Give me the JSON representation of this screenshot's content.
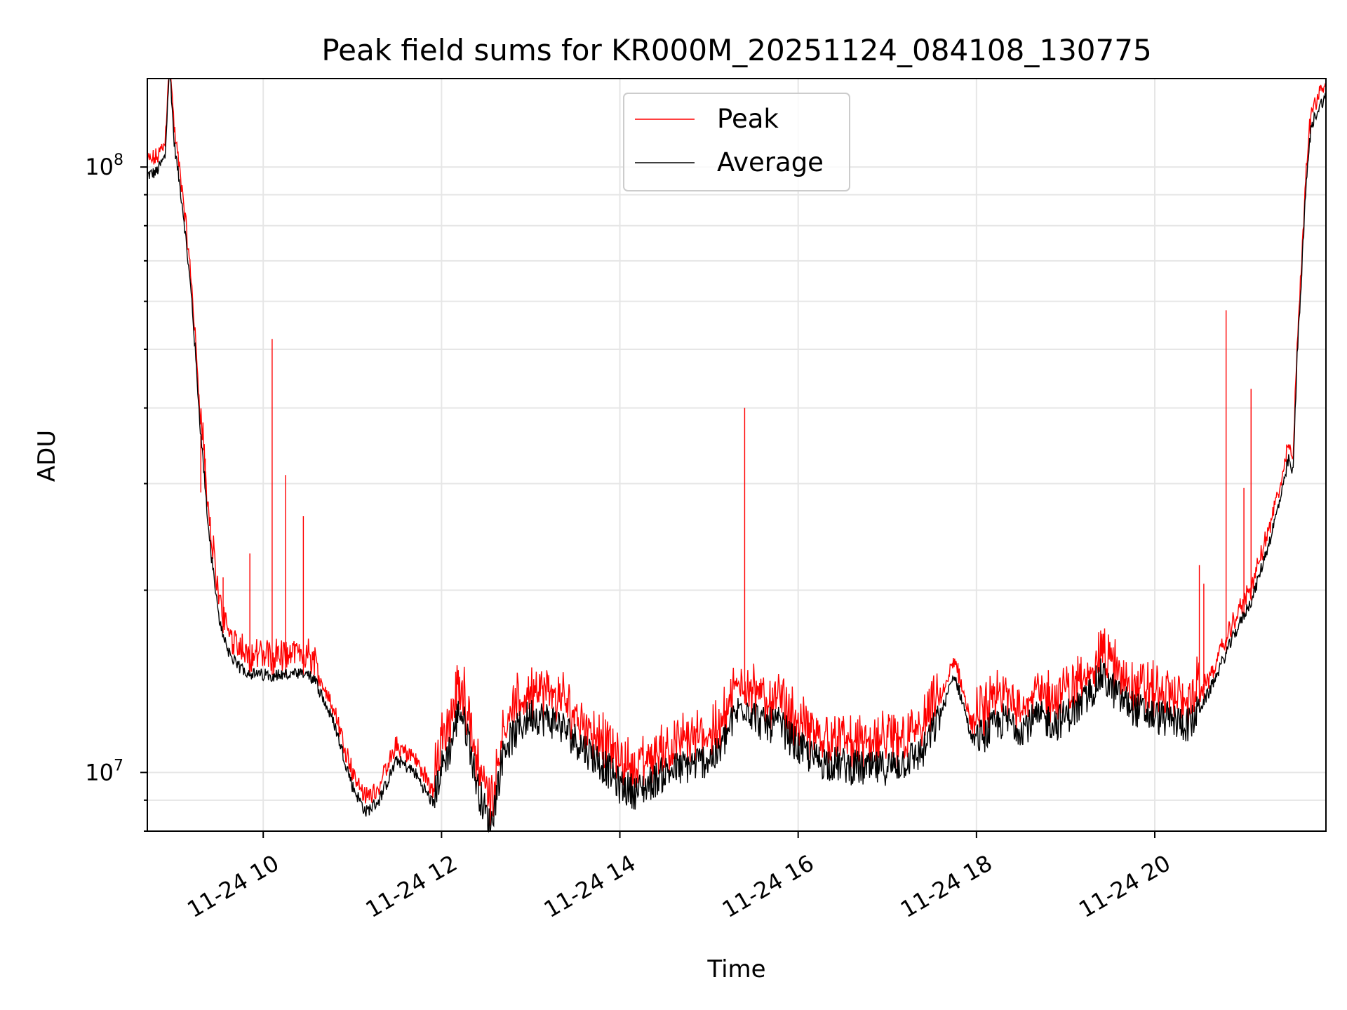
{
  "chart_data": {
    "type": "line",
    "title": "Peak field sums for KR000M_20251124_084108_130775",
    "xlabel": "Time",
    "ylabel": "ADU",
    "y_scale": "log",
    "ylim": [
      8000000,
      140000000
    ],
    "xlim_hours": [
      8.7,
      21.92
    ],
    "grid": true,
    "legend_position": "top-center",
    "x_ticks": [
      {
        "hour": 10,
        "label": "11-24 10"
      },
      {
        "hour": 12,
        "label": "11-24 12"
      },
      {
        "hour": 14,
        "label": "11-24 14"
      },
      {
        "hour": 16,
        "label": "11-24 16"
      },
      {
        "hour": 18,
        "label": "11-24 18"
      },
      {
        "hour": 20,
        "label": "11-24 20"
      }
    ],
    "y_ticks": [
      {
        "value": 10000000,
        "base": "10",
        "exp": "7"
      },
      {
        "value": 100000000,
        "base": "10",
        "exp": "8"
      }
    ],
    "series": [
      {
        "name": "Peak",
        "color": "#ff0000",
        "spikes": [
          [
            9.3,
            29000000
          ],
          [
            9.35,
            33000000
          ],
          [
            9.55,
            21000000
          ],
          [
            9.85,
            23000000
          ],
          [
            10.1,
            52000000
          ],
          [
            10.25,
            31000000
          ],
          [
            10.45,
            26500000
          ],
          [
            15.4,
            40000000
          ],
          [
            20.5,
            22000000
          ],
          [
            20.55,
            20500000
          ],
          [
            20.8,
            58000000
          ],
          [
            21.0,
            29500000
          ],
          [
            21.08,
            43000000
          ]
        ]
      },
      {
        "name": "Average",
        "color": "#000000",
        "x_hours": [
          8.7,
          8.8,
          8.9,
          8.95,
          9.0,
          9.1,
          9.2,
          9.3,
          9.4,
          9.5,
          9.6,
          9.7,
          9.9,
          10.2,
          10.5,
          10.6,
          10.8,
          11.0,
          11.15,
          11.3,
          11.5,
          11.7,
          11.9,
          12.0,
          12.1,
          12.2,
          12.3,
          12.4,
          12.55,
          12.7,
          13.0,
          13.3,
          13.6,
          13.9,
          14.0,
          14.2,
          14.5,
          14.8,
          15.1,
          15.3,
          15.4,
          15.6,
          15.8,
          16.0,
          16.2,
          16.5,
          16.8,
          17.1,
          17.4,
          17.6,
          17.75,
          17.85,
          17.95,
          18.1,
          18.3,
          18.5,
          18.7,
          18.9,
          19.2,
          19.4,
          19.6,
          19.8,
          20.0,
          20.2,
          20.4,
          20.6,
          20.9,
          21.1,
          21.3,
          21.45,
          21.5,
          21.55,
          21.6,
          21.65,
          21.7,
          21.75,
          21.8,
          21.9
        ],
        "values": [
          97000000,
          98000000,
          104000000,
          150000000,
          110000000,
          85000000,
          60000000,
          36000000,
          24000000,
          18000000,
          16000000,
          15000000,
          14500000,
          14500000,
          14500000,
          14000000,
          12000000,
          9500000,
          8600000,
          9000000,
          10500000,
          10000000,
          8900000,
          10200000,
          11000000,
          12800000,
          11500000,
          9500000,
          8100000,
          11000000,
          12500000,
          12100000,
          11000000,
          10000000,
          9500000,
          9300000,
          10000000,
          10300000,
          10700000,
          12500000,
          13000000,
          12000000,
          12000000,
          11000000,
          10500000,
          10300000,
          10100000,
          10300000,
          10800000,
          12500000,
          14500000,
          13000000,
          11300000,
          11600000,
          12200000,
          11900000,
          12300000,
          12100000,
          13000000,
          14500000,
          13300000,
          12700000,
          12400000,
          12200000,
          12000000,
          13500000,
          17000000,
          19500000,
          24500000,
          30000000,
          33000000,
          31000000,
          50000000,
          68000000,
          95000000,
          115000000,
          122000000,
          130000000
        ]
      }
    ]
  }
}
